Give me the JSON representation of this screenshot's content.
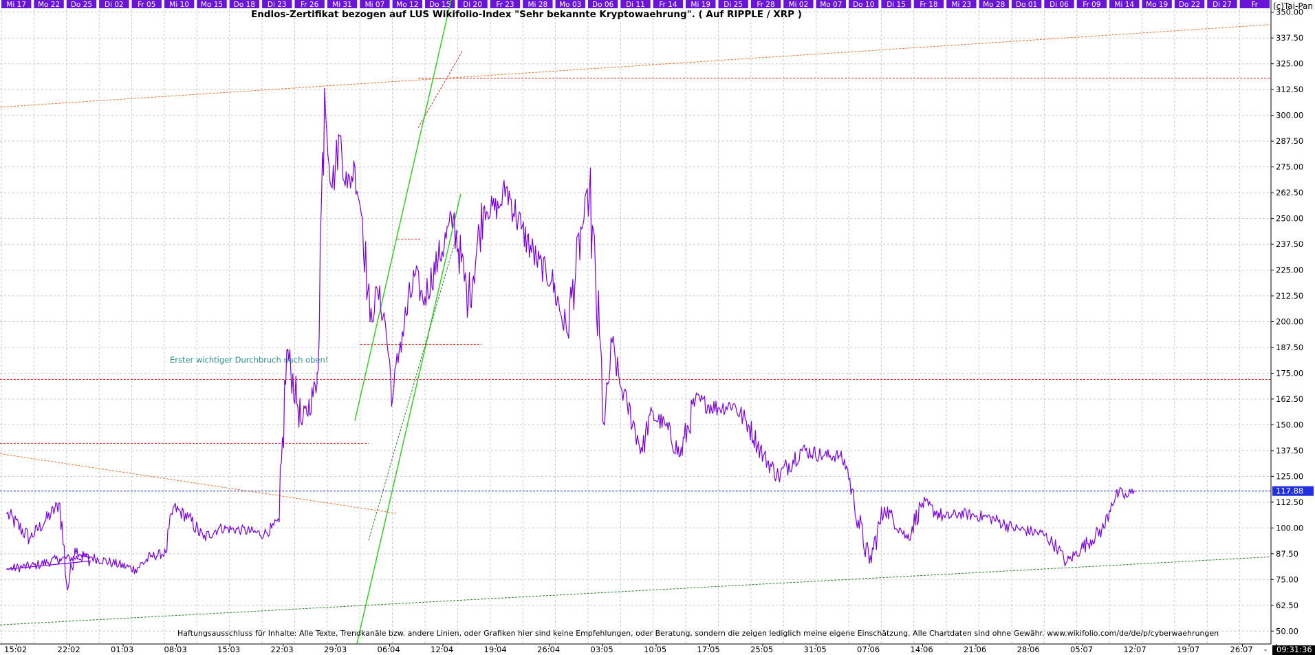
{
  "header": {
    "copyright": "(c)Tai-Pan",
    "title": "Endlos-Zertifikat bezogen auf LUS Wikifolio-Index \"Sehr bekannte Kryptowaehrung\". ( Auf RIPPLE / XRP )"
  },
  "top_day_labels": [
    "Mi 17",
    "Mo 22",
    "Do 25",
    "Di 02",
    "Fr 05",
    "Mi 10",
    "Mo 15",
    "Do 18",
    "Di 23",
    "Fr 26",
    "Mi 31",
    "Mi 07",
    "Mo 12",
    "Do 15",
    "Di 20",
    "Fr 23",
    "Mi 28",
    "Mo 03",
    "Do 06",
    "Di 11",
    "Fr 14",
    "Mi 19",
    "Di 25",
    "Fr 28",
    "Mi 02",
    "Mo 07",
    "Do 10",
    "Di 15",
    "Fr 18",
    "Mi 23",
    "Mo 28",
    "Do 01",
    "Di 06",
    "Fr 09",
    "Mi 14",
    "Mo 19",
    "Do 22",
    "Di 27",
    "Fr"
  ],
  "bottom_date_labels": [
    "15:02",
    "22:02",
    "01:03",
    "08:03",
    "15:03",
    "22:03",
    "29:03",
    "06:04",
    "12:04",
    "19:04",
    "26:04",
    "03:05",
    "10:05",
    "17:05",
    "25:05",
    "31:05",
    "07:06",
    "14:06",
    "21:06",
    "28:06",
    "05:07",
    "12:07",
    "19:07",
    "26:07",
    "-"
  ],
  "clock": "09:31:36",
  "annotation": "Erster wichtiger Durchbruch nach oben!",
  "disclaimer": "Haftungsausschluss für Inhalte: Alle Texte, Trendkanäle bzw. andere Linien, oder Grafiken hier sind keine Empfehlungen, oder Beratung, sondern die zeigen lediglich meine eigene Einschätzung. Alle Chartdaten sind ohne Gewähr.  www.wikifolio.com/de/de/p/cyberwaehrungen",
  "colors": {
    "price": "#7b00e0",
    "top_label_bg": "#6a14d6",
    "grid": "#c8c8c8",
    "support_red": "#e82020",
    "current_blue": "#2030e0",
    "trend_orange": "#f07028",
    "trend_green": "#30d020",
    "trend_dark_green": "#208020",
    "annotation_teal": "#2a9090"
  },
  "chart_data": {
    "type": "line",
    "scale": "linear",
    "ylim": [
      43.75,
      351.25
    ],
    "y_ticks": [
      "50.00",
      "62.50",
      "75.00",
      "87.50",
      "100.00",
      "112.50",
      "125.00",
      "137.50",
      "150.00",
      "162.50",
      "175.00",
      "187.50",
      "200.00",
      "212.50",
      "225.00",
      "237.50",
      "250.00",
      "262.50",
      "275.00",
      "287.50",
      "300.00",
      "312.50",
      "325.00",
      "337.50",
      "350.00"
    ],
    "current_value": "117.88",
    "grid": true,
    "x_range": [
      "15:02",
      "26:07"
    ],
    "series": [
      {
        "name": "",
        "x": [
          "15:02",
          "18:02",
          "20:02",
          "22:02",
          "23:02",
          "24:02",
          "26:02",
          "01:03",
          "05:03",
          "08:03",
          "12:03",
          "15:03",
          "18:03",
          "20:03",
          "22:03",
          "23:03",
          "25:03",
          "27:03",
          "29:03",
          "01:04",
          "04:04",
          "05:04",
          "06:04",
          "07:04",
          "09:04",
          "11:04",
          "11:04",
          "12:04",
          "13:04",
          "14:04",
          "15:04",
          "16:04",
          "17:04",
          "18:04",
          "19:04",
          "20:04",
          "21:04",
          "22:04",
          "24:04",
          "25:04",
          "27:04",
          "29:04",
          "01:05",
          "03:05",
          "05:05",
          "06:05",
          "08:05",
          "10:05",
          "12:05",
          "14:05",
          "16:05",
          "17:05",
          "19:05",
          "20:05",
          "21:05",
          "22:05",
          "24:05",
          "25:05",
          "27:05",
          "29:05",
          "31:05",
          "03:06",
          "05:06",
          "07:06",
          "09:06",
          "11:06",
          "14:06",
          "17:06",
          "19:06",
          "20:06",
          "21:06",
          "23:06",
          "25:06",
          "27:06",
          "28:06",
          "30:06",
          "03:07",
          "05:07",
          "09:07",
          "12:07",
          "16:07",
          "18:07",
          "19:07",
          "21:07",
          "24:07",
          "25:07",
          "26:07",
          "27:07",
          "28:07"
        ],
        "values": [
          107,
          95,
          103,
          112,
          70,
          90,
          84,
          80,
          82,
          85,
          86,
          83,
          80,
          86,
          88,
          110,
          105,
          95,
          100,
          99,
          97,
          100,
          103,
          186,
          150,
          170,
          175,
          313,
          265,
          290,
          265,
          275,
          250,
          200,
          215,
          200,
          163,
          190,
          223,
          210,
          230,
          250,
          210,
          255,
          255,
          265,
          245,
          230,
          220,
          195,
          245,
          262,
          150,
          190,
          170,
          160,
          137,
          155,
          150,
          135,
          162,
          158,
          160,
          150,
          135,
          125,
          138,
          135,
          135,
          130,
          112,
          83,
          110,
          100,
          95,
          112,
          105,
          107,
          105,
          100,
          97,
          90,
          83,
          90,
          100,
          112,
          117,
          115,
          117.88
        ]
      }
    ]
  }
}
